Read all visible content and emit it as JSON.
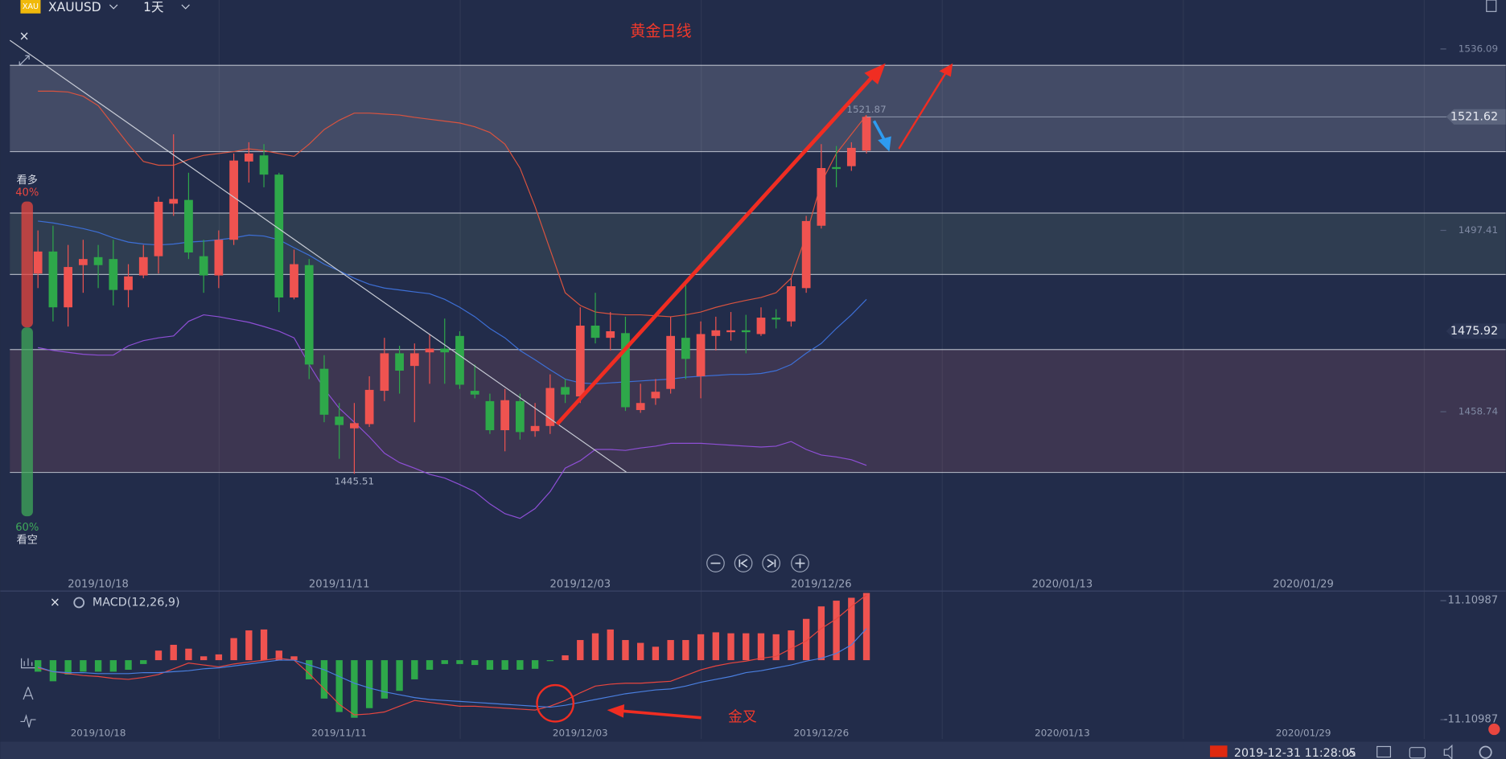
{
  "toolbar": {
    "icon": "XAU",
    "symbol": "XAUUSD",
    "interval": "1天"
  },
  "chart_data": [
    {
      "type": "candlestick",
      "title": "黄金日线",
      "categories": [
        null,
        null,
        null,
        null,
        "2019/10/18",
        null,
        null,
        null,
        null,
        null,
        null,
        null,
        null,
        null,
        null,
        null,
        null,
        null,
        null,
        null,
        "2019/11/11",
        null,
        null,
        null,
        null,
        null,
        null,
        null,
        null,
        null,
        null,
        null,
        null,
        null,
        null,
        null,
        "2019/12/03",
        null,
        null,
        null,
        null,
        null,
        null,
        null,
        null,
        null,
        null,
        null,
        null,
        null,
        null,
        null,
        "2019/12/26",
        null,
        null,
        null,
        null,
        null,
        null,
        null,
        null,
        null,
        null,
        null,
        null,
        null,
        null,
        null,
        "2020/01/13",
        null,
        null,
        null,
        null,
        null,
        null,
        null,
        null,
        null,
        null,
        null,
        null,
        null,
        null,
        null,
        "2020/01/29"
      ],
      "open": [
        1488.2,
        1492.9,
        1481.0,
        1490.0,
        1491.7,
        1491.3,
        1484.7,
        1487.8,
        1491.9,
        1503.1,
        1503.9,
        1491.9,
        1487.8,
        1495.4,
        1512.1,
        1513.4,
        1509.3,
        1483.1,
        1490.0,
        1467.9,
        1457.7,
        1455.2,
        1456.1,
        1463.2,
        1471.2,
        1468.5,
        1471.4,
        1472.2,
        1474.9,
        1463.2,
        1461.0,
        1454.8,
        1461.0,
        1454.6,
        1455.7,
        1464.0,
        1462.0,
        1477.1,
        1474.5,
        1475.5,
        1459.1,
        1461.6,
        1463.6,
        1474.5,
        1466.3,
        1474.9,
        1475.7,
        1476.1,
        1475.3,
        1478.8,
        1478.0,
        1485.1,
        1498.4,
        1510.9,
        1511.1,
        1514.4,
        null,
        null,
        null,
        null,
        null,
        null,
        null,
        null,
        null,
        null,
        null,
        null,
        null,
        null,
        null,
        null,
        null,
        null,
        null,
        null,
        null,
        null,
        null,
        null,
        null,
        null,
        null,
        null,
        null
      ],
      "high": [
        1497.4,
        1498.4,
        1494.3,
        1495.4,
        1494.3,
        1495.4,
        1490.2,
        1494.3,
        1504.6,
        1517.9,
        1509.7,
        1495.4,
        1497.4,
        1513.8,
        1516.2,
        1515.8,
        1509.7,
        1493.3,
        1491.3,
        1470.8,
        1460.6,
        1460.6,
        1466.3,
        1474.5,
        1472.8,
        1473.3,
        1475.3,
        1478.6,
        1475.9,
        1468.8,
        1462.6,
        1463.6,
        1462.6,
        1460.6,
        1466.7,
        1465.7,
        1481.0,
        1484.1,
        1480.0,
        1479.0,
        1464.7,
        1465.7,
        1479.0,
        1486.1,
        1478.0,
        1479.0,
        1480.0,
        1479.4,
        1481.0,
        1480.6,
        1487.2,
        1500.5,
        1515.8,
        1515.4,
        1516.2,
        1521.87,
        null,
        null,
        null,
        null,
        null,
        null,
        null,
        null,
        null,
        null,
        null,
        null,
        null,
        null,
        null,
        null,
        null,
        null,
        null,
        null,
        null,
        null,
        null,
        null,
        null,
        null,
        null,
        null,
        null
      ],
      "low": [
        1485.1,
        1478.0,
        1476.9,
        1484.1,
        1485.1,
        1481.4,
        1481.0,
        1487.2,
        1488.2,
        1500.5,
        1491.3,
        1484.1,
        1485.1,
        1494.3,
        1507.6,
        1506.6,
        1480.0,
        1482.7,
        1465.7,
        1456.5,
        1448.7,
        1445.51,
        1455.5,
        1461.0,
        1462.6,
        1456.5,
        1464.7,
        1464.7,
        1463.6,
        1461.6,
        1454.0,
        1450.3,
        1452.8,
        1453.4,
        1454.0,
        1460.6,
        1460.6,
        1473.3,
        1471.8,
        1458.9,
        1458.5,
        1460.2,
        1462.6,
        1465.7,
        1461.6,
        1471.8,
        1473.9,
        1471.2,
        1474.9,
        1476.5,
        1476.9,
        1484.1,
        1497.8,
        1506.6,
        1510.1,
        1513.8,
        null,
        null,
        null,
        null,
        null,
        null,
        null,
        null,
        null,
        null,
        null,
        null,
        null,
        null,
        null,
        null,
        null,
        null,
        null,
        null,
        null,
        null,
        null,
        null,
        null,
        null,
        null,
        null,
        null
      ],
      "close": [
        1492.9,
        1481.0,
        1489.6,
        1491.3,
        1490.0,
        1484.7,
        1487.6,
        1491.7,
        1503.5,
        1504.1,
        1492.7,
        1487.8,
        1495.4,
        1512.3,
        1513.8,
        1509.3,
        1483.1,
        1490.2,
        1468.8,
        1458.1,
        1455.9,
        1456.3,
        1463.4,
        1471.2,
        1467.5,
        1471.2,
        1472.2,
        1471.4,
        1464.5,
        1462.4,
        1454.8,
        1461.2,
        1454.4,
        1455.7,
        1463.8,
        1462.4,
        1477.1,
        1474.5,
        1475.9,
        1459.7,
        1460.6,
        1463.0,
        1474.9,
        1470.0,
        1475.3,
        1476.1,
        1476.1,
        1475.7,
        1478.8,
        1478.4,
        1485.5,
        1499.4,
        1510.7,
        1510.5,
        1515.0,
        1521.62,
        null,
        null,
        null,
        null,
        null,
        null,
        null,
        null,
        null,
        null,
        null,
        null,
        null,
        null,
        null,
        null,
        null,
        null,
        null,
        null,
        null,
        null,
        null,
        null,
        null,
        null,
        null,
        null,
        null
      ],
      "up_color": "#ef5350",
      "down_color": "#2ea84a",
      "ylim": [
        1423.77,
        1546.53
      ],
      "yticks": [
        1536.09,
        1497.41,
        1458.74
      ],
      "price_line": 1475.92,
      "series": [
        {
          "color": "#d9533f",
          "values": [
            1527.1,
            1527.1,
            1526.9,
            1526.0,
            1524.0,
            1519.9,
            1515.8,
            1512.1,
            1511.3,
            1511.3,
            1512.5,
            1513.4,
            1513.8,
            1514.2,
            1514.8,
            1514.4,
            1513.8,
            1513.2,
            1515.8,
            1518.9,
            1520.9,
            1522.4,
            1522.4,
            1522.2,
            1522.0,
            1521.5,
            1521.1,
            1520.7,
            1520.3,
            1519.5,
            1518.3,
            1515.8,
            1510.7,
            1502.5,
            1493.3,
            1484.1,
            1481.4,
            1480.0,
            1479.6,
            1479.4,
            1479.4,
            1479.2,
            1479.0,
            1479.4,
            1480.0,
            1481.0,
            1481.8,
            1482.5,
            1483.1,
            1484.1,
            1487.2,
            1496.4,
            1507.6,
            1513.8,
            1517.9,
            1522.0,
            null,
            null,
            null,
            null,
            null,
            null,
            null,
            null,
            null,
            null,
            null,
            null,
            null,
            null,
            null,
            null,
            null,
            null,
            null,
            null,
            null,
            null,
            null,
            null,
            null,
            null,
            null,
            null,
            null
          ]
        },
        {
          "color": "#3d6fd6",
          "values": [
            1499.4,
            1499.0,
            1498.4,
            1497.8,
            1497.0,
            1495.8,
            1494.9,
            1494.5,
            1494.3,
            1494.5,
            1494.9,
            1495.1,
            1495.4,
            1495.8,
            1496.4,
            1496.2,
            1495.4,
            1493.7,
            1492.1,
            1490.2,
            1488.8,
            1487.2,
            1485.9,
            1485.1,
            1484.7,
            1484.3,
            1483.9,
            1482.7,
            1481.0,
            1479.0,
            1476.5,
            1474.5,
            1471.8,
            1469.8,
            1467.7,
            1465.7,
            1464.9,
            1464.7,
            1464.9,
            1465.1,
            1465.3,
            1465.5,
            1465.7,
            1466.1,
            1466.3,
            1466.5,
            1466.7,
            1466.7,
            1466.9,
            1467.5,
            1468.8,
            1471.2,
            1473.3,
            1476.5,
            1479.4,
            1482.7,
            null,
            null,
            null,
            null,
            null,
            null,
            null,
            null,
            null,
            null,
            null,
            null,
            null,
            null,
            null,
            null,
            null,
            null,
            null,
            null,
            null,
            null,
            null,
            null,
            null,
            null,
            null,
            null,
            null
          ]
        },
        {
          "color": "#8e4fd6",
          "values": [
            1472.4,
            1471.8,
            1471.4,
            1471.0,
            1470.8,
            1470.8,
            1472.8,
            1473.9,
            1474.5,
            1474.9,
            1478.0,
            1479.4,
            1479.0,
            1478.4,
            1477.8,
            1476.9,
            1475.9,
            1474.5,
            1468.8,
            1463.6,
            1459.5,
            1456.5,
            1453.4,
            1449.9,
            1447.9,
            1446.7,
            1445.4,
            1444.6,
            1443.2,
            1441.7,
            1439.1,
            1437.0,
            1436.0,
            1438.1,
            1441.7,
            1446.7,
            1448.3,
            1450.7,
            1450.7,
            1450.5,
            1451.0,
            1451.4,
            1452.0,
            1452.0,
            1452.0,
            1451.8,
            1451.6,
            1451.4,
            1451.2,
            1451.4,
            1452.4,
            1450.7,
            1449.5,
            1449.1,
            1448.5,
            1447.3,
            null,
            null,
            null,
            null,
            null,
            null,
            null,
            null,
            null,
            null,
            null,
            null,
            null,
            null,
            null,
            null,
            null,
            null,
            null,
            null,
            null,
            null,
            null,
            null,
            null,
            null,
            null,
            null,
            null
          ]
        }
      ],
      "zones": [
        {
          "range": [
            1532.6,
            1514.2
          ],
          "color": "rgba(200,200,215,0.20)"
        },
        {
          "range": [
            1501.1,
            1488.0
          ],
          "color": "rgba(130,170,130,0.14)"
        },
        {
          "range": [
            1472.0,
            1445.8
          ],
          "color": "rgba(170,95,110,0.20)"
        }
      ]
    },
    {
      "type": "macd",
      "title": "MACD(12,26,9)",
      "annotation": "金叉",
      "histogram": [
        -2.15,
        -3.94,
        -2.69,
        -2.15,
        -2.15,
        -2.15,
        -1.79,
        -0.72,
        1.79,
        2.87,
        2.15,
        0.72,
        1.08,
        4.12,
        5.56,
        5.73,
        1.79,
        0.72,
        -3.58,
        -7.17,
        -9.68,
        -10.75,
        -8.96,
        -7.17,
        -5.73,
        -3.58,
        -1.79,
        -0.72,
        -0.72,
        -0.9,
        -1.79,
        -1.79,
        -1.79,
        -1.61,
        -0.18,
        0.9,
        3.76,
        5.02,
        5.73,
        3.76,
        3.23,
        2.51,
        3.76,
        3.76,
        4.84,
        5.2,
        5.02,
        5.02,
        5.02,
        4.84,
        5.56,
        7.71,
        10.04,
        11.11,
        11.65,
        12.54,
        null,
        null,
        null,
        null,
        null,
        null,
        null,
        null,
        null,
        null,
        null,
        null,
        null,
        null,
        null,
        null,
        null,
        null,
        null,
        null,
        null,
        null,
        null,
        null,
        null,
        null,
        null,
        null,
        null
      ],
      "up_color": "#ef5350",
      "down_color": "#2ea84a",
      "series": [
        {
          "color": "#e8463f",
          "values": [
            -1.43,
            -2.15,
            -2.51,
            -2.87,
            -3.05,
            -3.4,
            -3.58,
            -3.23,
            -2.69,
            -1.61,
            -0.54,
            -0.9,
            -1.25,
            -0.72,
            -0.36,
            0,
            0.36,
            0,
            -2.51,
            -5.38,
            -8.24,
            -10.21,
            -10.04,
            -9.68,
            -8.6,
            -7.53,
            -7.88,
            -8.24,
            -8.6,
            -8.6,
            -8.78,
            -8.96,
            -9.14,
            -9.32,
            -8.6,
            -7.53,
            -6.09,
            -4.84,
            -4.48,
            -4.3,
            -4.3,
            -4.12,
            -3.94,
            -2.87,
            -1.79,
            -1.08,
            -0.54,
            -0.18,
            0.36,
            0.72,
            2.15,
            3.58,
            5.91,
            7.71,
            10.04,
            12.19,
            null,
            null,
            null,
            null,
            null,
            null,
            null,
            null,
            null,
            null,
            null,
            null,
            null,
            null,
            null,
            null,
            null,
            null,
            null,
            null,
            null,
            null,
            null,
            null,
            null,
            null,
            null,
            null,
            null
          ]
        },
        {
          "color": "#4a7fe0",
          "values": [
            -1.25,
            -2.15,
            -2.33,
            -2.33,
            -2.51,
            -2.51,
            -2.51,
            -2.33,
            -2.33,
            -2.15,
            -1.97,
            -1.61,
            -1.43,
            -1.08,
            -0.72,
            -0.36,
            0,
            0,
            -0.9,
            -1.79,
            -3.05,
            -4.3,
            -5.2,
            -5.91,
            -6.45,
            -6.99,
            -7.35,
            -7.53,
            -7.71,
            -7.88,
            -8.06,
            -8.24,
            -8.42,
            -8.6,
            -8.78,
            -8.42,
            -7.88,
            -7.35,
            -6.81,
            -6.27,
            -5.91,
            -5.56,
            -5.38,
            -4.84,
            -4.12,
            -3.58,
            -3.05,
            -2.33,
            -1.97,
            -1.43,
            -0.9,
            -0.18,
            0.36,
            1.25,
            2.87,
            5.91,
            null,
            null,
            null,
            null,
            null,
            null,
            null,
            null,
            null,
            null,
            null,
            null,
            null,
            null,
            null,
            null,
            null,
            null,
            null,
            null,
            null,
            null,
            null,
            null,
            null,
            null,
            null,
            null,
            null
          ]
        }
      ],
      "ylim": [
        -14.69,
        12.9
      ],
      "yticks": [
        11.10987,
        -11.10987
      ]
    }
  ],
  "sentiment": {
    "labels": [
      "看多",
      "看空"
    ],
    "values": [
      40,
      60
    ],
    "value_labels": [
      "40%",
      "60%"
    ],
    "colors": [
      "#e8463f",
      "#3fa85a"
    ]
  },
  "status": {
    "time": "2019-12-31 11:28:05"
  }
}
